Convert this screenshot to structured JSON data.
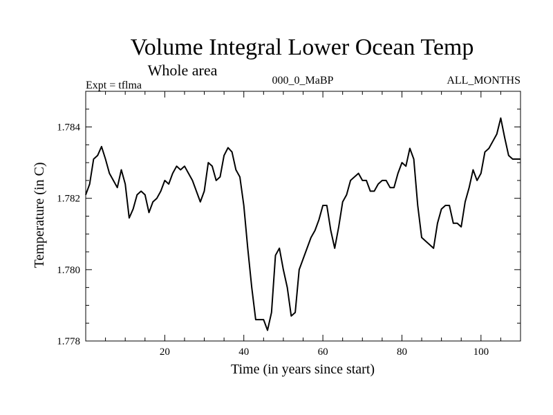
{
  "chart_data": {
    "type": "line",
    "title": "Volume Integral Lower Ocean Temp",
    "subtitle": "Whole area",
    "expt_label": "Expt = tflma",
    "center_label": "000_0_MaBP",
    "right_label": "ALL_MONTHS",
    "xlabel": "Time (in years since start)",
    "ylabel": "Temperature (in C)",
    "xlim": [
      0,
      110
    ],
    "ylim": [
      1.778,
      1.785
    ],
    "xticks_major": [
      20,
      40,
      60,
      80,
      100
    ],
    "xtick_labels": [
      "20",
      "40",
      "60",
      "80",
      "100"
    ],
    "yticks_major": [
      1.778,
      1.78,
      1.782,
      1.784
    ],
    "ytick_labels": [
      "1.778",
      "1.780",
      "1.782",
      "1.784"
    ],
    "grid": false,
    "series": [
      {
        "name": "Lower Ocean Temp",
        "x": [
          0,
          1,
          2,
          3,
          4,
          5,
          6,
          7,
          8,
          9,
          10,
          11,
          12,
          13,
          14,
          15,
          16,
          17,
          18,
          19,
          20,
          21,
          22,
          23,
          24,
          25,
          26,
          27,
          28,
          29,
          30,
          31,
          32,
          33,
          34,
          35,
          36,
          37,
          38,
          39,
          40,
          41,
          42,
          43,
          44,
          45,
          46,
          47,
          48,
          49,
          50,
          51,
          52,
          53,
          54,
          55,
          56,
          57,
          58,
          59,
          60,
          61,
          62,
          63,
          64,
          65,
          66,
          67,
          68,
          69,
          70,
          71,
          72,
          73,
          74,
          75,
          76,
          77,
          78,
          79,
          80,
          81,
          82,
          83,
          84,
          85,
          86,
          87,
          88,
          89,
          90,
          91,
          92,
          93,
          94,
          95,
          96,
          97,
          98,
          99,
          100,
          101,
          102,
          103,
          104,
          105,
          106,
          107,
          108,
          109,
          110
        ],
        "values": [
          1.7821,
          1.7824,
          1.7831,
          1.7832,
          1.78345,
          1.7831,
          1.7827,
          1.7825,
          1.7823,
          1.7828,
          1.7824,
          1.78145,
          1.7817,
          1.7821,
          1.7822,
          1.7821,
          1.7816,
          1.7819,
          1.782,
          1.7822,
          1.7825,
          1.7824,
          1.7827,
          1.7829,
          1.7828,
          1.7829,
          1.7827,
          1.7825,
          1.7822,
          1.7819,
          1.7822,
          1.783,
          1.7829,
          1.7825,
          1.7826,
          1.7832,
          1.78342,
          1.7833,
          1.7828,
          1.7826,
          1.7818,
          1.7806,
          1.7795,
          1.7786,
          1.7786,
          1.7786,
          1.7783,
          1.7788,
          1.7804,
          1.7806,
          1.78,
          1.7795,
          1.7787,
          1.7788,
          1.78,
          1.7803,
          1.7806,
          1.7809,
          1.7811,
          1.7814,
          1.7818,
          1.7818,
          1.7811,
          1.7806,
          1.7812,
          1.7819,
          1.7821,
          1.7825,
          1.7826,
          1.7827,
          1.7825,
          1.7825,
          1.7822,
          1.7822,
          1.7824,
          1.7825,
          1.7825,
          1.7823,
          1.7823,
          1.7827,
          1.783,
          1.7829,
          1.7834,
          1.7831,
          1.7818,
          1.7809,
          1.7808,
          1.7807,
          1.7806,
          1.7813,
          1.7817,
          1.7818,
          1.7818,
          1.7813,
          1.7813,
          1.7812,
          1.7819,
          1.7823,
          1.7828,
          1.7825,
          1.7827,
          1.7833,
          1.7834,
          1.7836,
          1.7838,
          1.78425,
          1.7837,
          1.7832,
          1.7831,
          1.7831,
          1.7831
        ]
      }
    ]
  }
}
